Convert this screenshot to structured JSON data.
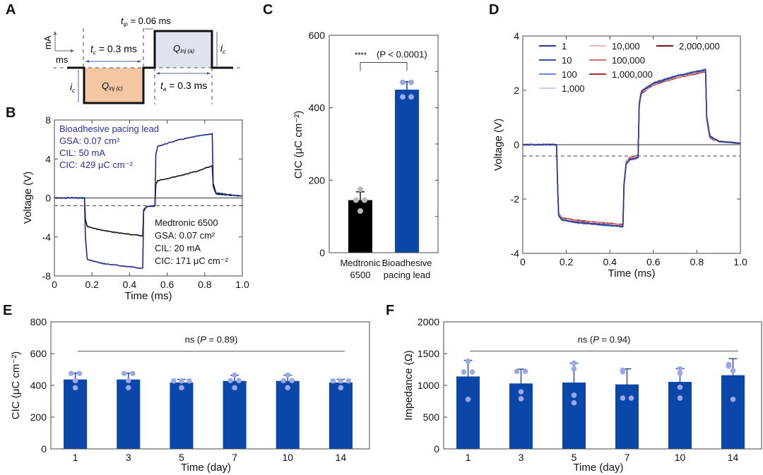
{
  "panel_labels": {
    "A": "A",
    "B": "B",
    "C": "C",
    "D": "D",
    "E": "E",
    "F": "F"
  },
  "colors": {
    "bar_blue": "#0b47a8",
    "dot_blue": "#9aa8ea",
    "dot_gray": "#b8b8b8",
    "error_bar": "#1c3a70",
    "navy_trace": "#1e2a8a",
    "black_trace": "#111111",
    "cathodic_fill": "#f3c6a4",
    "anodic_fill": "#dfe3ee",
    "annotation_blue": "#2b2f9c"
  },
  "panel_a": {
    "tip_label": "t",
    "tip_sub": "ip",
    "tip_value": " = 0.06 ms",
    "tc_label": "t",
    "tc_sub": "c",
    "tc_value": " = 0.3 ms",
    "ta_label": "t",
    "ta_sub": "a",
    "ta_value": " = 0.3 ms",
    "q_cathodic": "Q",
    "q_cathodic_sub": "inj (c)",
    "q_anodic": "Q",
    "q_anodic_sub": "inj (a)",
    "ic": "i",
    "ic_sub": "c",
    "axis_y_unit": "mA",
    "axis_x_unit": "ms"
  },
  "chart_data": [
    {
      "id": "B",
      "type": "line",
      "xlabel": "Time (ms)",
      "ylabel": "Voltage (V)",
      "xlim": [
        0,
        1.0
      ],
      "ylim": [
        -8,
        8
      ],
      "xticks": [
        "0",
        "0.2",
        "0.4",
        "0.6",
        "0.8",
        "1.0"
      ],
      "xtick_values": [
        0,
        0.2,
        0.4,
        0.6,
        0.8,
        1.0
      ],
      "yticks": [
        "-8",
        "-4",
        "0",
        "4",
        "8"
      ],
      "ytick_values": [
        -8,
        -4,
        0,
        4,
        8
      ],
      "zero_line": 0,
      "dashed_line": -0.8,
      "series": [
        {
          "name": "Bioadhesive pacing lead",
          "color": "#1e2a8a",
          "x": [
            0,
            0.16,
            0.165,
            0.175,
            0.25,
            0.35,
            0.47,
            0.475,
            0.49,
            0.535,
            0.54,
            0.55,
            0.65,
            0.75,
            0.84,
            0.845,
            0.86,
            0.95,
            1.0
          ],
          "y": [
            0,
            0,
            -4,
            -6.3,
            -6.7,
            -6.95,
            -7.2,
            -1.4,
            -0.9,
            -0.8,
            4.5,
            5.3,
            5.9,
            6.3,
            6.6,
            1.5,
            0.5,
            0.3,
            0.2
          ]
        },
        {
          "name": "Medtronic 6500",
          "color": "#111111",
          "x": [
            0,
            0.16,
            0.165,
            0.175,
            0.25,
            0.35,
            0.47,
            0.475,
            0.49,
            0.535,
            0.54,
            0.55,
            0.65,
            0.75,
            0.84,
            0.845,
            0.86,
            0.95,
            1.0
          ],
          "y": [
            0,
            0,
            -2.2,
            -2.9,
            -3.3,
            -3.6,
            -3.9,
            -1.2,
            -0.9,
            -0.8,
            1.4,
            1.8,
            2.2,
            2.7,
            3.3,
            1.2,
            0.4,
            0.25,
            0.2
          ]
        }
      ],
      "annotations": [
        {
          "lines": [
            "Bioadhesive pacing lead",
            "GSA: 0.07 cm²",
            "CIL: 50 mA",
            "CIC: 429 μC cm⁻²"
          ],
          "color": "#2b2f9c",
          "position": "top-left"
        },
        {
          "lines": [
            "Medtronic 6500",
            "GSA: 0.07 cm²",
            "CIL: 20 mA",
            "CIC: 171 μC cm⁻²"
          ],
          "color": "#111111",
          "position": "bottom-right"
        }
      ]
    },
    {
      "id": "C",
      "type": "bar",
      "categories": [
        "Medtronic 6500",
        "Bioadhesive pacing lead"
      ],
      "category_lines": [
        [
          "Medtronic",
          "6500"
        ],
        [
          "Bioadhesive",
          "pacing lead"
        ]
      ],
      "values": [
        145,
        450
      ],
      "errors": [
        23,
        22
      ],
      "points": [
        [
          175,
          145,
          145,
          115
        ],
        [
          470,
          470,
          430,
          430
        ]
      ],
      "bar_colors": [
        "#000000",
        "#0b47a8"
      ],
      "point_colors": [
        "#b8b8b8",
        "#9aa8ea"
      ],
      "xlabel": "",
      "ylabel": "CIC (μC cm⁻²)",
      "ylim": [
        0,
        600
      ],
      "yticks": [
        "0",
        "200",
        "400",
        "600"
      ],
      "ytick_values": [
        0,
        200,
        400,
        600
      ],
      "significance": {
        "stars": "****",
        "text": "(P < 0.0001)",
        "y": 525
      }
    },
    {
      "id": "D",
      "type": "line",
      "xlabel": "Time (ms)",
      "ylabel": "Voltage (V)",
      "xlim": [
        0,
        1.0
      ],
      "ylim": [
        -4,
        4
      ],
      "xticks": [
        "0",
        "0.2",
        "0.4",
        "0.6",
        "0.8",
        "1.0"
      ],
      "xtick_values": [
        0,
        0.2,
        0.4,
        0.6,
        0.8,
        1.0
      ],
      "yticks": [
        "-4",
        "-2",
        "0",
        "2",
        "4"
      ],
      "ytick_values": [
        -4,
        -2,
        0,
        2,
        4
      ],
      "zero_line": 0,
      "dashed_line": -0.42,
      "legend_position": "top-left",
      "series": [
        {
          "name": "1",
          "color": "#2b3a8c",
          "offset": 0.0
        },
        {
          "name": "10",
          "color": "#3a4fa8",
          "offset": 0.02
        },
        {
          "name": "100",
          "color": "#6f86d8",
          "offset": 0.03
        },
        {
          "name": "1,000",
          "color": "#c9cfe8",
          "offset": 0.01
        },
        {
          "name": "10,000",
          "color": "#efb9b9",
          "offset": -0.02
        },
        {
          "name": "100,000",
          "color": "#d96a6a",
          "offset": -0.04
        },
        {
          "name": "1,000,000",
          "color": "#b22a2a",
          "offset": -0.05
        },
        {
          "name": "2,000,000",
          "color": "#6e1414",
          "offset": -0.06
        }
      ],
      "base_x": [
        0,
        0.155,
        0.16,
        0.165,
        0.18,
        0.25,
        0.35,
        0.46,
        0.465,
        0.475,
        0.49,
        0.53,
        0.535,
        0.545,
        0.6,
        0.7,
        0.84,
        0.845,
        0.86,
        0.9,
        1.0
      ],
      "base_y": [
        0,
        0,
        -1.5,
        -2.6,
        -2.75,
        -2.85,
        -2.92,
        -3.0,
        -1.5,
        -0.7,
        -0.55,
        -0.45,
        1.5,
        1.95,
        2.25,
        2.5,
        2.75,
        1.0,
        0.3,
        0.12,
        0.05
      ]
    },
    {
      "id": "E",
      "type": "bar",
      "categories": [
        "1",
        "3",
        "5",
        "7",
        "10",
        "14"
      ],
      "values": [
        437,
        437,
        418,
        428,
        428,
        418
      ],
      "errors": [
        40,
        40,
        20,
        35,
        35,
        20
      ],
      "points": [
        [
          475,
          475,
          430,
          385
        ],
        [
          475,
          475,
          430,
          385
        ],
        [
          428,
          428,
          428,
          385
        ],
        [
          465,
          430,
          430,
          385
        ],
        [
          465,
          430,
          430,
          385
        ],
        [
          428,
          428,
          428,
          385
        ]
      ],
      "bar_color": "#0b47a8",
      "point_color": "#9aa8ea",
      "xlabel": "Time (day)",
      "ylabel": "CIC (μC cm⁻²)",
      "ylim": [
        0,
        800
      ],
      "yticks": [
        "0",
        "200",
        "400",
        "600",
        "800"
      ],
      "ytick_values": [
        0,
        200,
        400,
        600,
        800
      ],
      "significance": {
        "text_prefix": "ns (",
        "italic": "P",
        "text_suffix": " = 0.89)",
        "y": 615
      }
    },
    {
      "id": "F",
      "type": "bar",
      "categories": [
        "1",
        "3",
        "5",
        "7",
        "10",
        "14"
      ],
      "values": [
        1140,
        1030,
        1045,
        1015,
        1055,
        1160
      ],
      "errors": [
        255,
        225,
        305,
        245,
        210,
        260
      ],
      "points": [
        [
          1380,
          1210,
          1210,
          780
        ],
        [
          1220,
          1220,
          900,
          790
        ],
        [
          1350,
          1260,
          845,
          725
        ],
        [
          1215,
          1240,
          800,
          800
        ],
        [
          1260,
          1190,
          970,
          800
        ],
        [
          1300,
          1330,
          1230,
          780
        ]
      ],
      "bar_color": "#0b47a8",
      "point_color": "#9aa8ea",
      "xlabel": "Time (day)",
      "ylabel": "Impedance (Ω)",
      "ylim": [
        0,
        2000
      ],
      "yticks": [
        "0",
        "500",
        "1000",
        "1500",
        "2000"
      ],
      "ytick_values": [
        0,
        500,
        1000,
        1500,
        2000
      ],
      "significance": {
        "text_prefix": "ns (",
        "italic": "P",
        "text_suffix": " = 0.94)",
        "y": 1540
      }
    }
  ]
}
